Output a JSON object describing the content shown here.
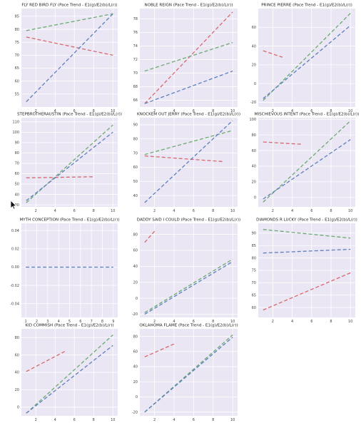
{
  "figure": {
    "layout": "4x3 grid of line charts",
    "background": "#ffffff",
    "plot_background": "#eae6f4",
    "grid_color": "#ffffff",
    "series_colors": {
      "red": "#d9676b",
      "green": "#6aaa6e",
      "blue": "#5b7fbf"
    },
    "pointer": "arrow-cursor-icon"
  },
  "chart_data": [
    {
      "type": "line",
      "title": "FLY RED BIRD FLY (Pace Trend - E1(g)/E2(b)/L(r))",
      "xlim": [
        0.5,
        10.5
      ],
      "ylim": [
        50,
        88
      ],
      "xticks": [
        "2",
        "4",
        "6",
        "8",
        "10"
      ],
      "yticks": [
        "55",
        "60",
        "65",
        "70",
        "75",
        "80",
        "85"
      ],
      "grid": true,
      "series": [
        {
          "color": "#d9676b",
          "x": [
            1,
            10
          ],
          "values": [
            77,
            70
          ]
        },
        {
          "color": "#6aaa6e",
          "x": [
            1,
            10
          ],
          "values": [
            79.5,
            86
          ]
        },
        {
          "color": "#5b7fbf",
          "x": [
            1,
            10
          ],
          "values": [
            52,
            86
          ]
        }
      ]
    },
    {
      "type": "line",
      "title": "NOBLE REIGN (Pace Trend - E1(g)/E2(b)/L(r))",
      "xlim": [
        0.5,
        10.5
      ],
      "ylim": [
        65,
        79.5
      ],
      "xticks": [
        "2",
        "4",
        "6",
        "8",
        "10"
      ],
      "yticks": [
        "66",
        "68",
        "70",
        "72",
        "74",
        "76",
        "78"
      ],
      "grid": true,
      "series": [
        {
          "color": "#d9676b",
          "x": [
            1,
            10
          ],
          "values": [
            65.5,
            79
          ]
        },
        {
          "color": "#6aaa6e",
          "x": [
            1,
            10
          ],
          "values": [
            70.3,
            74.5
          ]
        },
        {
          "color": "#5b7fbf",
          "x": [
            1,
            10
          ],
          "values": [
            65.5,
            70.3
          ]
        }
      ]
    },
    {
      "type": "line",
      "title": "PRINCE PIERRE (Pace Trend - E1(g)/E2(b)/L(r))",
      "xlim": [
        0.5,
        10.5
      ],
      "ylim": [
        -25,
        80
      ],
      "xticks": [
        "2",
        "4",
        "6",
        "8",
        "10"
      ],
      "yticks": [
        "-20",
        "0",
        "20",
        "40",
        "60"
      ],
      "grid": true,
      "series": [
        {
          "color": "#d9676b",
          "x": [
            1,
            3
          ],
          "values": [
            35,
            28
          ]
        },
        {
          "color": "#6aaa6e",
          "x": [
            1,
            10
          ],
          "values": [
            -18,
            75
          ]
        },
        {
          "color": "#5b7fbf",
          "x": [
            1,
            10
          ],
          "values": [
            -16,
            62
          ]
        }
      ]
    },
    {
      "type": "line",
      "title": "STEPBROTHERAUSTIN (Pace Trend - E1(g)/E2(b)/L(r))",
      "xlim": [
        0.5,
        10.5
      ],
      "ylim": [
        28,
        114
      ],
      "xticks": [
        "2",
        "4",
        "6",
        "8",
        "10"
      ],
      "yticks": [
        "30",
        "40",
        "50",
        "60",
        "70",
        "80",
        "90",
        "100",
        "110"
      ],
      "grid": true,
      "series": [
        {
          "color": "#d9676b",
          "x": [
            1,
            8
          ],
          "values": [
            56,
            57
          ]
        },
        {
          "color": "#6aaa6e",
          "x": [
            1,
            10
          ],
          "values": [
            32,
            107
          ]
        },
        {
          "color": "#5b7fbf",
          "x": [
            1,
            10
          ],
          "values": [
            34,
            100
          ]
        }
      ]
    },
    {
      "type": "line",
      "title": "KNOCKEM OUT JERRY (Pace Trend - E1(g)/E2(b)/L(r))",
      "xlim": [
        0.5,
        10.5
      ],
      "ylim": [
        32,
        95
      ],
      "xticks": [
        "2",
        "4",
        "6",
        "8",
        "10"
      ],
      "yticks": [
        "40",
        "50",
        "60",
        "70",
        "80",
        "90"
      ],
      "grid": true,
      "series": [
        {
          "color": "#d9676b",
          "x": [
            1,
            9
          ],
          "values": [
            68,
            64
          ]
        },
        {
          "color": "#6aaa6e",
          "x": [
            1,
            10
          ],
          "values": [
            69,
            86
          ]
        },
        {
          "color": "#5b7fbf",
          "x": [
            1,
            10
          ],
          "values": [
            35,
            93
          ]
        }
      ]
    },
    {
      "type": "line",
      "title": "MISCHIEVOUS INTENT (Pace Trend - E1(g)/E2(b)/L(r))",
      "xlim": [
        0.5,
        10.5
      ],
      "ylim": [
        -12,
        102
      ],
      "xticks": [
        "2",
        "4",
        "6",
        "8",
        "10"
      ],
      "yticks": [
        "0",
        "20",
        "40",
        "60",
        "80",
        "100"
      ],
      "grid": true,
      "series": [
        {
          "color": "#d9676b",
          "x": [
            1,
            5
          ],
          "values": [
            71,
            68
          ]
        },
        {
          "color": "#6aaa6e",
          "x": [
            1,
            10
          ],
          "values": [
            -6,
            98
          ]
        },
        {
          "color": "#5b7fbf",
          "x": [
            1,
            10
          ],
          "values": [
            -2,
            74
          ]
        }
      ]
    },
    {
      "type": "line",
      "title": "MYTH CONCEPTION (Pace Trend - E1(g)/E2(b)/L(r))",
      "xlim": [
        0.6,
        9.4
      ],
      "ylim": [
        -0.055,
        0.048
      ],
      "xticks": [
        "1",
        "2",
        "3",
        "4",
        "5",
        "6",
        "7",
        "8",
        "9"
      ],
      "yticks": [
        "-0.04",
        "-0.02",
        "0.00",
        "0.02",
        "0.04"
      ],
      "grid": true,
      "series": [
        {
          "color": "#5b7fbf",
          "x": [
            1,
            9
          ],
          "values": [
            0,
            0
          ]
        }
      ]
    },
    {
      "type": "line",
      "title": "DADDY SAID I COULD (Pace Trend - E1(g)/E2(b)/L(r))",
      "xlim": [
        0.5,
        10.5
      ],
      "ylim": [
        -24,
        94
      ],
      "xticks": [
        "2",
        "4",
        "6",
        "8",
        "10"
      ],
      "yticks": [
        "-20",
        "0",
        "20",
        "40",
        "60",
        "80"
      ],
      "grid": true,
      "series": [
        {
          "color": "#d9676b",
          "x": [
            1,
            2
          ],
          "values": [
            70,
            84
          ]
        },
        {
          "color": "#6aaa6e",
          "x": [
            1,
            10
          ],
          "values": [
            -18,
            49
          ]
        },
        {
          "color": "#5b7fbf",
          "x": [
            1,
            10
          ],
          "values": [
            -20,
            46
          ]
        }
      ]
    },
    {
      "type": "line",
      "title": "DIAMONDS R LUCKY (Pace Trend - E1(g)/E2(b)/L(r))",
      "xlim": [
        0.5,
        10.5
      ],
      "ylim": [
        56,
        94
      ],
      "xticks": [
        "2",
        "4",
        "6",
        "8",
        "10"
      ],
      "yticks": [
        "60",
        "65",
        "70",
        "75",
        "80",
        "85",
        "90"
      ],
      "grid": true,
      "series": [
        {
          "color": "#d9676b",
          "x": [
            1,
            10
          ],
          "values": [
            59,
            74
          ]
        },
        {
          "color": "#6aaa6e",
          "x": [
            1,
            10
          ],
          "values": [
            91.5,
            88
          ]
        },
        {
          "color": "#5b7fbf",
          "x": [
            1,
            10
          ],
          "values": [
            82,
            83.5
          ]
        }
      ]
    },
    {
      "type": "line",
      "title": "KID COMMISH (Pace Trend - E1(g)/E2(b)/L(r))",
      "xlim": [
        0.5,
        10.5
      ],
      "ylim": [
        -10,
        90
      ],
      "xticks": [
        "2",
        "4",
        "6",
        "8",
        "10"
      ],
      "yticks": [
        "0",
        "20",
        "40",
        "60",
        "80"
      ],
      "grid": true,
      "series": [
        {
          "color": "#d9676b",
          "x": [
            1,
            5
          ],
          "values": [
            41,
            64
          ]
        },
        {
          "color": "#6aaa6e",
          "x": [
            1,
            10
          ],
          "values": [
            -7,
            83
          ]
        },
        {
          "color": "#5b7fbf",
          "x": [
            1,
            10
          ],
          "values": [
            -7,
            71
          ]
        }
      ]
    },
    {
      "type": "line",
      "title": "OKLAHOMA FLAME (Pace Trend - E1(g)/E2(b)/L(r))",
      "xlim": [
        0.5,
        10.5
      ],
      "ylim": [
        -25,
        90
      ],
      "xticks": [
        "2",
        "4",
        "6",
        "8",
        "10"
      ],
      "yticks": [
        "-20",
        "0",
        "20",
        "40",
        "60",
        "80"
      ],
      "grid": true,
      "series": [
        {
          "color": "#d9676b",
          "x": [
            1,
            4
          ],
          "values": [
            53,
            70
          ]
        },
        {
          "color": "#6aaa6e",
          "x": [
            1,
            10
          ],
          "values": [
            -20,
            82
          ]
        },
        {
          "color": "#5b7fbf",
          "x": [
            1,
            10
          ],
          "values": [
            -20,
            79
          ]
        }
      ]
    }
  ]
}
